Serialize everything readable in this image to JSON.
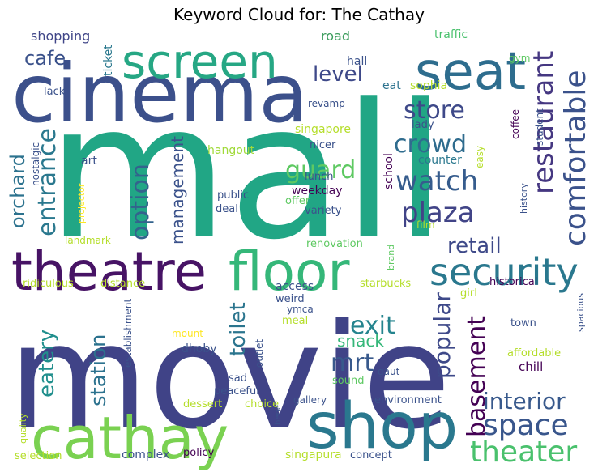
{
  "chart_data": {
    "type": "wordcloud",
    "title": "Keyword Cloud for: The Cathay",
    "palette": [
      "#440154",
      "#3b528b",
      "#21918c",
      "#5ec962",
      "#b5de2b",
      "#fde725"
    ],
    "words": [
      {
        "text": "mall",
        "weight": 100,
        "color": "#21a685",
        "vertical": false
      },
      {
        "text": "movie",
        "weight": 95,
        "color": "#404387",
        "vertical": false
      },
      {
        "text": "cinema",
        "weight": 58,
        "color": "#3c508b",
        "vertical": false
      },
      {
        "text": "shop",
        "weight": 46,
        "color": "#2a788e",
        "vertical": false
      },
      {
        "text": "cathay",
        "weight": 44,
        "color": "#7ad151",
        "vertical": false
      },
      {
        "text": "theatre",
        "weight": 38,
        "color": "#471365",
        "vertical": false
      },
      {
        "text": "floor",
        "weight": 38,
        "color": "#35b779",
        "vertical": false
      },
      {
        "text": "seat",
        "weight": 36,
        "color": "#2e6d8e",
        "vertical": false
      },
      {
        "text": "screen",
        "weight": 34,
        "color": "#26a784",
        "vertical": false
      },
      {
        "text": "security",
        "weight": 28,
        "color": "#2a788e",
        "vertical": false
      },
      {
        "text": "theater",
        "weight": 22,
        "color": "#4ac16d",
        "vertical": false
      },
      {
        "text": "space",
        "weight": 22,
        "color": "#39568c",
        "vertical": false
      },
      {
        "text": "comfortable",
        "weight": 22,
        "color": "#3b528b",
        "vertical": true
      },
      {
        "text": "restaurant",
        "weight": 20,
        "color": "#453781",
        "vertical": true
      },
      {
        "text": "watch",
        "weight": 20,
        "color": "#365c8d",
        "vertical": false
      },
      {
        "text": "plaza",
        "weight": 20,
        "color": "#414487",
        "vertical": false
      },
      {
        "text": "crowd",
        "weight": 18,
        "color": "#2f6c8e",
        "vertical": false
      },
      {
        "text": "store",
        "weight": 18,
        "color": "#3e4989",
        "vertical": false
      },
      {
        "text": "guard",
        "weight": 18,
        "color": "#5ec962",
        "vertical": false
      },
      {
        "text": "entrance",
        "weight": 18,
        "color": "#2a788e",
        "vertical": true
      },
      {
        "text": "option",
        "weight": 18,
        "color": "#33638d",
        "vertical": true
      },
      {
        "text": "exit",
        "weight": 18,
        "color": "#25848e",
        "vertical": false
      },
      {
        "text": "mrt",
        "weight": 18,
        "color": "#38598c",
        "vertical": false
      },
      {
        "text": "basement",
        "weight": 18,
        "color": "#440154",
        "vertical": true
      },
      {
        "text": "popular",
        "weight": 18,
        "color": "#3e4989",
        "vertical": true
      },
      {
        "text": "interior",
        "weight": 18,
        "color": "#38598c",
        "vertical": false
      },
      {
        "text": "retail",
        "weight": 16,
        "color": "#3e4989",
        "vertical": false
      },
      {
        "text": "station",
        "weight": 16,
        "color": "#2c728e",
        "vertical": true
      },
      {
        "text": "eatery",
        "weight": 16,
        "color": "#218f8d",
        "vertical": true
      },
      {
        "text": "toilet",
        "weight": 16,
        "color": "#2b758e",
        "vertical": true
      },
      {
        "text": "level",
        "weight": 16,
        "color": "#3e4989",
        "vertical": false
      },
      {
        "text": "cafe",
        "weight": 16,
        "color": "#3b528b",
        "vertical": false
      },
      {
        "text": "orchard",
        "weight": 14,
        "color": "#2c728e",
        "vertical": true
      },
      {
        "text": "management",
        "weight": 13,
        "color": "#3b528b",
        "vertical": true
      },
      {
        "text": "snack",
        "weight": 13,
        "color": "#35b779",
        "vertical": false
      },
      {
        "text": "shopping",
        "weight": 11,
        "color": "#404688",
        "vertical": false
      },
      {
        "text": "ticket",
        "weight": 10,
        "color": "#2a788e",
        "vertical": true
      },
      {
        "text": "road",
        "weight": 11,
        "color": "#3b9c5c",
        "vertical": false
      },
      {
        "text": "traffic",
        "weight": 10,
        "color": "#4ac16d",
        "vertical": false
      },
      {
        "text": "hall",
        "weight": 10,
        "color": "#3b528b",
        "vertical": false
      },
      {
        "text": "eat",
        "weight": 10,
        "color": "#2c728e",
        "vertical": false
      },
      {
        "text": "sophia",
        "weight": 10,
        "color": "#b5de2b",
        "vertical": false
      },
      {
        "text": "gym",
        "weight": 10,
        "color": "#5ec962",
        "vertical": false
      },
      {
        "text": "lack",
        "weight": 10,
        "color": "#3b528b",
        "vertical": false
      },
      {
        "text": "revamp",
        "weight": 10,
        "color": "#3b528b",
        "vertical": false
      },
      {
        "text": "singapore",
        "weight": 11,
        "color": "#b5de2b",
        "vertical": false
      },
      {
        "text": "nicer",
        "weight": 10,
        "color": "#3b528b",
        "vertical": false
      },
      {
        "text": "lady",
        "weight": 10,
        "color": "#3b528b",
        "vertical": false
      },
      {
        "text": "hangout",
        "weight": 11,
        "color": "#a0da39",
        "vertical": false
      },
      {
        "text": "nostalgic",
        "weight": 10,
        "color": "#3b528b",
        "vertical": true
      },
      {
        "text": "art",
        "weight": 10,
        "color": "#3b528b",
        "vertical": false
      },
      {
        "text": "counter",
        "weight": 10,
        "color": "#2a788e",
        "vertical": false
      },
      {
        "text": "easy",
        "weight": 9,
        "color": "#b5de2b",
        "vertical": true
      },
      {
        "text": "coffee",
        "weight": 9,
        "color": "#440154",
        "vertical": true
      },
      {
        "text": "student",
        "weight": 9,
        "color": "#3b528b",
        "vertical": true
      },
      {
        "text": "school",
        "weight": 10,
        "color": "#440154",
        "vertical": true
      },
      {
        "text": "lunch",
        "weight": 10,
        "color": "#3b528b",
        "vertical": false
      },
      {
        "text": "weekday",
        "weight": 11,
        "color": "#440154",
        "vertical": false
      },
      {
        "text": "public",
        "weight": 9,
        "color": "#3b528b",
        "vertical": false
      },
      {
        "text": "offer",
        "weight": 9,
        "color": "#5ec962",
        "vertical": false
      },
      {
        "text": "deal",
        "weight": 9,
        "color": "#3b528b",
        "vertical": false
      },
      {
        "text": "variety",
        "weight": 10,
        "color": "#3b528b",
        "vertical": false
      },
      {
        "text": "projector",
        "weight": 9,
        "color": "#fde725",
        "vertical": true
      },
      {
        "text": "history",
        "weight": 9,
        "color": "#3b528b",
        "vertical": true
      },
      {
        "text": "film",
        "weight": 9,
        "color": "#b5de2b",
        "vertical": false
      },
      {
        "text": "landmark",
        "weight": 10,
        "color": "#b5de2b",
        "vertical": false
      },
      {
        "text": "renovation",
        "weight": 10,
        "color": "#5ec962",
        "vertical": false
      },
      {
        "text": "brand",
        "weight": 9,
        "color": "#5ec962",
        "vertical": true
      },
      {
        "text": "ridiculous",
        "weight": 10,
        "color": "#b5de2b",
        "vertical": false
      },
      {
        "text": "distance",
        "weight": 10,
        "color": "#b5de2b",
        "vertical": false
      },
      {
        "text": "access",
        "weight": 10,
        "color": "#3b528b",
        "vertical": false
      },
      {
        "text": "starbucks",
        "weight": 10,
        "color": "#b5de2b",
        "vertical": false
      },
      {
        "text": "historical",
        "weight": 10,
        "color": "#440154",
        "vertical": false
      },
      {
        "text": "girl",
        "weight": 10,
        "color": "#b5de2b",
        "vertical": false
      },
      {
        "text": "weird",
        "weight": 10,
        "color": "#3b528b",
        "vertical": false
      },
      {
        "text": "ymca",
        "weight": 9,
        "color": "#3b528b",
        "vertical": false
      },
      {
        "text": "meal",
        "weight": 10,
        "color": "#b5de2b",
        "vertical": false
      },
      {
        "text": "establishment",
        "weight": 9,
        "color": "#3b528b",
        "vertical": true
      },
      {
        "text": "mount",
        "weight": 9,
        "color": "#fde725",
        "vertical": false
      },
      {
        "text": "dhoby",
        "weight": 10,
        "color": "#3b528b",
        "vertical": false
      },
      {
        "text": "outlet",
        "weight": 9,
        "color": "#3b528b",
        "vertical": true
      },
      {
        "text": "town",
        "weight": 10,
        "color": "#3b528b",
        "vertical": false
      },
      {
        "text": "spacious",
        "weight": 9,
        "color": "#3b528b",
        "vertical": true
      },
      {
        "text": "affordable",
        "weight": 10,
        "color": "#b5de2b",
        "vertical": false
      },
      {
        "text": "chill",
        "weight": 11,
        "color": "#440154",
        "vertical": false
      },
      {
        "text": "sad",
        "weight": 10,
        "color": "#3b528b",
        "vertical": false
      },
      {
        "text": "sound",
        "weight": 10,
        "color": "#5ec962",
        "vertical": false
      },
      {
        "text": "gaut",
        "weight": 9,
        "color": "#3b528b",
        "vertical": false
      },
      {
        "text": "peaceful",
        "weight": 10,
        "color": "#3b528b",
        "vertical": false
      },
      {
        "text": "dessert",
        "weight": 10,
        "color": "#b5de2b",
        "vertical": false
      },
      {
        "text": "choice",
        "weight": 10,
        "color": "#b5de2b",
        "vertical": false
      },
      {
        "text": "gallery",
        "weight": 10,
        "color": "#3b528b",
        "vertical": false
      },
      {
        "text": "environment",
        "weight": 10,
        "color": "#3b528b",
        "vertical": false
      },
      {
        "text": "quality",
        "weight": 9,
        "color": "#b5de2b",
        "vertical": true
      },
      {
        "text": "bene",
        "weight": 9,
        "color": "#3b528b",
        "vertical": true
      },
      {
        "text": "complex",
        "weight": 11,
        "color": "#3b528b",
        "vertical": false
      },
      {
        "text": "policy",
        "weight": 10,
        "color": "#440154",
        "vertical": false
      },
      {
        "text": "selection",
        "weight": 10,
        "color": "#b5de2b",
        "vertical": false
      },
      {
        "text": "singapura",
        "weight": 11,
        "color": "#b5de2b",
        "vertical": false
      },
      {
        "text": "concept",
        "weight": 10,
        "color": "#3b528b",
        "vertical": false
      }
    ]
  }
}
